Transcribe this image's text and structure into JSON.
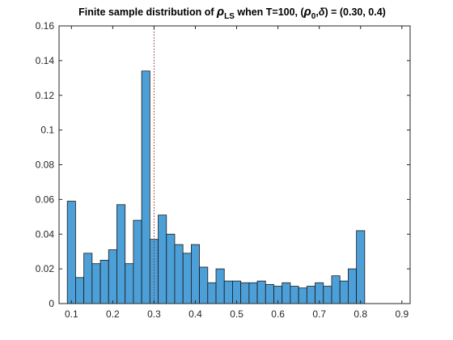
{
  "chart_data": {
    "type": "bar",
    "title": {
      "prefix": "Finite sample distribution of ",
      "rho": "ρ",
      "sub_ls": "LS",
      "middle": " when T=100, (",
      "sub_0": "0",
      "comma": ",",
      "delta": "δ",
      "suffix": ") = (0.30, 0.4)"
    },
    "xlabel": "",
    "ylabel": "",
    "xlim": [
      0.07,
      0.92
    ],
    "ylim": [
      0,
      0.16
    ],
    "grid": false,
    "x_tick_labels": [
      "0.1",
      "0.2",
      "0.3",
      "0.4",
      "0.5",
      "0.6",
      "0.7",
      "0.8",
      "0.9"
    ],
    "x_tick_values": [
      0.1,
      0.2,
      0.3,
      0.4,
      0.5,
      0.6,
      0.7,
      0.8,
      0.9
    ],
    "y_tick_labels": [
      "0",
      "0.02",
      "0.04",
      "0.06",
      "0.08",
      "0.1",
      "0.12",
      "0.14",
      "0.16"
    ],
    "y_tick_values": [
      0,
      0.02,
      0.04,
      0.06,
      0.08,
      0.1,
      0.12,
      0.14,
      0.16
    ],
    "bin_start": 0.09,
    "bin_width": 0.02,
    "values": [
      0.059,
      0.015,
      0.029,
      0.023,
      0.025,
      0.031,
      0.057,
      0.023,
      0.048,
      0.134,
      0.037,
      0.051,
      0.04,
      0.034,
      0.029,
      0.034,
      0.021,
      0.012,
      0.02,
      0.013,
      0.013,
      0.012,
      0.012,
      0.013,
      0.011,
      0.01,
      0.012,
      0.01,
      0.009,
      0.01,
      0.012,
      0.01,
      0.016,
      0.013,
      0.02,
      0.042
    ],
    "reference_line_x": 0.3,
    "colors": {
      "bar_fill": "#4d9fd8",
      "bar_edge": "#1a1a1a",
      "reference_line": "#8b2e2e",
      "axis": "#262626"
    }
  }
}
